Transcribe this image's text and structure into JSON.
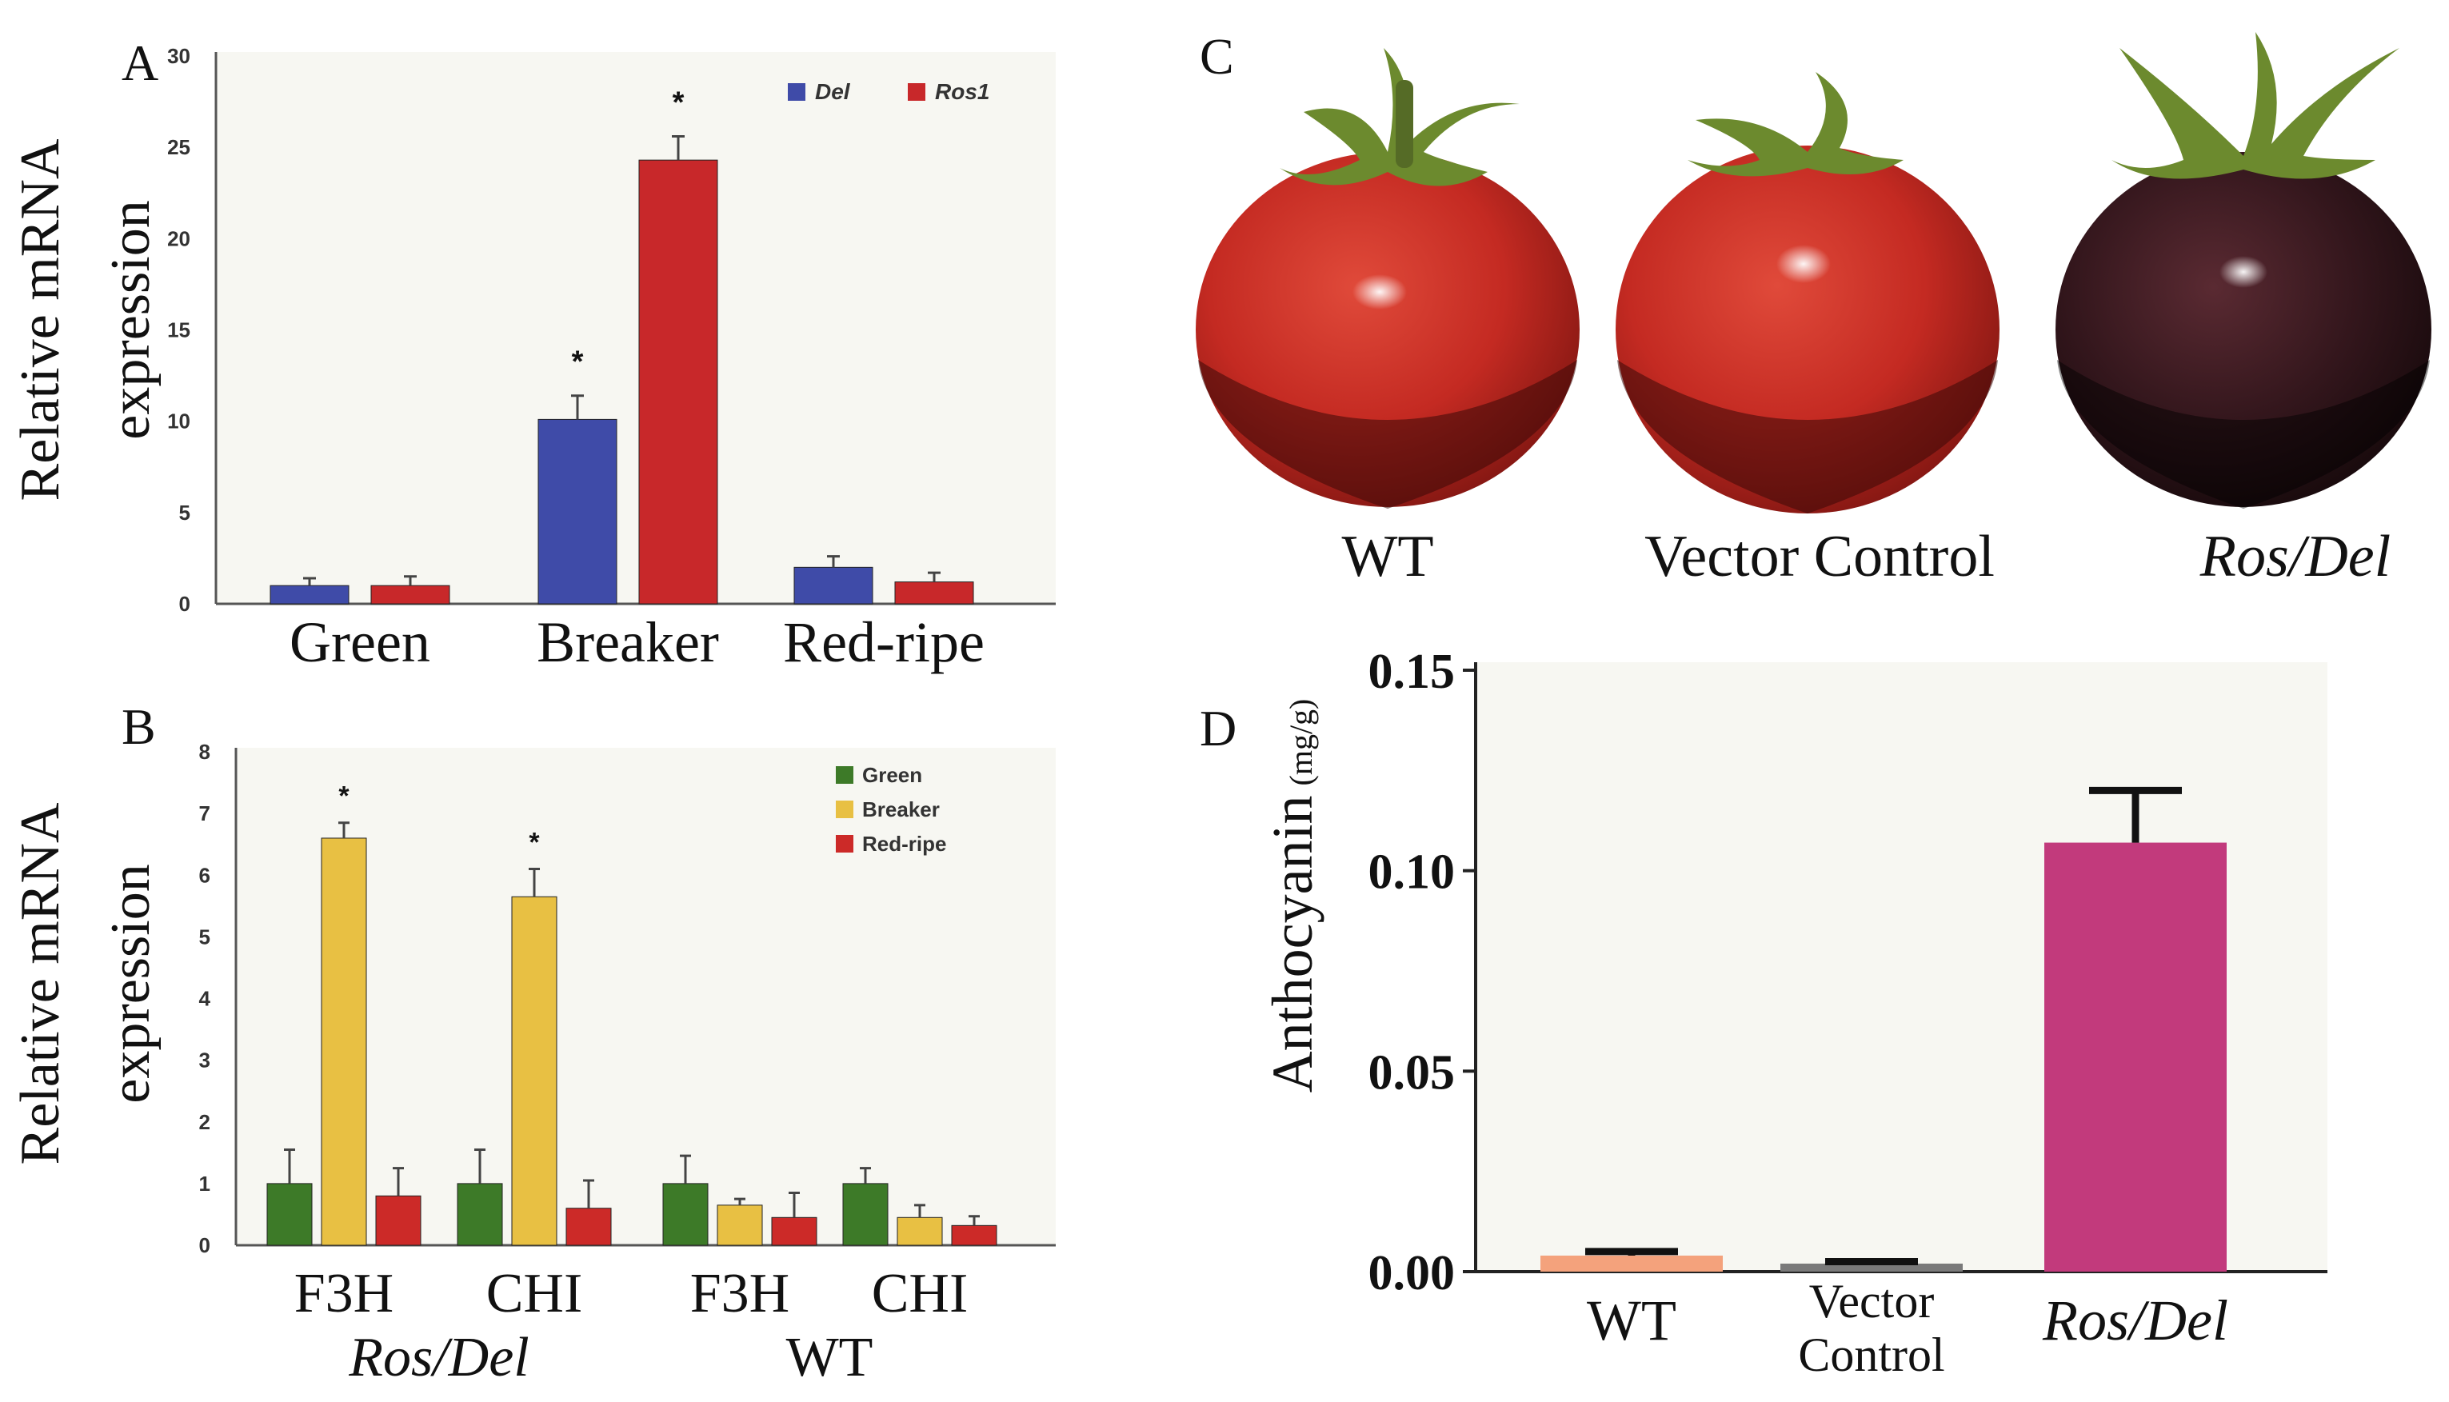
{
  "panels": {
    "a": {
      "letter": "A"
    },
    "b": {
      "letter": "B"
    },
    "c": {
      "letter": "C"
    },
    "d": {
      "letter": "D"
    }
  },
  "colors": {
    "del": "#3f4ba8",
    "ros1": "#c8282a",
    "green": "#3d7a28",
    "breaker": "#e8c043",
    "red_ripe": "#cc2a28",
    "wt_bar": "#f4a27c",
    "vector_bar": "#7a7a7a",
    "rosdel_bar": "#c23a7c"
  },
  "photos": {
    "labels": [
      "WT",
      "Vector Control",
      "Ros/Del"
    ],
    "fruit_colors": [
      "red",
      "red",
      "dark-purple"
    ]
  },
  "chart_data": [
    {
      "id": "A",
      "type": "bar",
      "ylabel_lines": [
        "Relative mRNA",
        "expression"
      ],
      "categories": [
        "Green",
        "Breaker",
        "Red-ripe"
      ],
      "ylim": [
        0,
        30
      ],
      "yticks": [
        0,
        5,
        10,
        15,
        20,
        25,
        30
      ],
      "series": [
        {
          "name": "Del",
          "values": [
            1.0,
            10.1,
            2.0
          ],
          "errors": [
            0.4,
            1.3,
            0.6
          ]
        },
        {
          "name": "Ros1",
          "values": [
            1.0,
            24.3,
            1.2
          ],
          "errors": [
            0.5,
            1.3,
            0.5
          ]
        }
      ],
      "significance": [
        {
          "category": "Breaker",
          "series": "Del",
          "mark": "*"
        },
        {
          "category": "Breaker",
          "series": "Ros1",
          "mark": "*"
        }
      ],
      "legend": "top-right"
    },
    {
      "id": "B",
      "type": "bar",
      "ylabel_lines": [
        "Relative mRNA",
        "expression"
      ],
      "categories": [
        "F3H",
        "CHI",
        "F3H",
        "CHI"
      ],
      "groups": [
        {
          "label": "Ros/Del",
          "categories": [
            0,
            1
          ]
        },
        {
          "label": "WT",
          "categories": [
            2,
            3
          ]
        }
      ],
      "ylim": [
        0,
        8
      ],
      "yticks": [
        0,
        1,
        2,
        3,
        4,
        5,
        6,
        7,
        8
      ],
      "series": [
        {
          "name": "Green",
          "values": [
            1.0,
            1.0,
            1.0,
            1.0
          ],
          "errors": [
            0.55,
            0.55,
            0.45,
            0.25
          ]
        },
        {
          "name": "Breaker",
          "values": [
            6.6,
            5.65,
            0.65,
            0.45
          ],
          "errors": [
            0.25,
            0.45,
            0.1,
            0.2
          ]
        },
        {
          "name": "Red-ripe",
          "values": [
            0.8,
            0.6,
            0.45,
            0.32
          ],
          "errors": [
            0.45,
            0.45,
            0.4,
            0.15
          ]
        }
      ],
      "significance": [
        {
          "category": 0,
          "series": "Breaker",
          "mark": "*"
        },
        {
          "category": 1,
          "series": "Breaker",
          "mark": "*"
        }
      ],
      "legend": "top-right"
    },
    {
      "id": "D",
      "type": "bar",
      "ylabel": "Anthocyanin",
      "ylabel_unit": "(mg/g)",
      "categories": [
        "WT",
        "Vector Control",
        "Ros/Del"
      ],
      "category_lines": [
        [
          "WT"
        ],
        [
          "Vector",
          "Control"
        ],
        [
          "Ros/Del"
        ]
      ],
      "ylim": [
        0,
        0.15
      ],
      "yticks": [
        "0.00",
        "0.05",
        "0.10",
        "0.15"
      ],
      "values": [
        0.004,
        0.002,
        0.107
      ],
      "errors": [
        0.001,
        0.0005,
        0.013
      ]
    }
  ]
}
